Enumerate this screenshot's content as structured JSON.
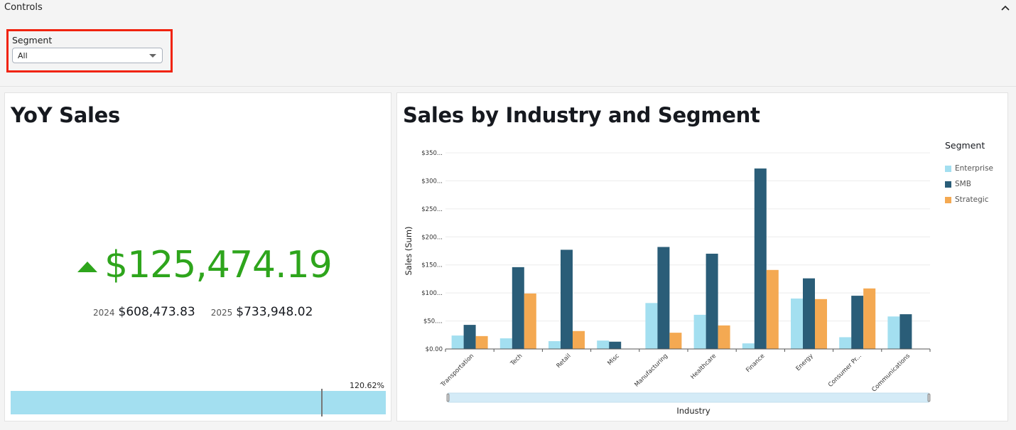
{
  "controls": {
    "title": "Controls",
    "collapse_icon": "chevron-up-icon",
    "segment_label": "Segment",
    "segment_value": "All"
  },
  "kpi": {
    "title": "YoY Sales",
    "trend_icon": "triangle-up-icon",
    "difference": "$125,474.19",
    "prior_year": "2024",
    "prior_value": "$608,473.83",
    "current_year": "2025",
    "current_value": "$733,948.02",
    "progress_label": "120.62%",
    "progress_percent": 120.62,
    "colors": {
      "positive": "#2ea51c",
      "bar": "#a3dff0",
      "marker": "#777777"
    }
  },
  "chart_data": {
    "type": "bar",
    "title": "Sales by Industry and Segment",
    "xlabel": "Industry",
    "ylabel": "Sales (Sum)",
    "ylim": [
      0,
      350
    ],
    "yticks": [
      0,
      50,
      100,
      150,
      200,
      250,
      300,
      350
    ],
    "ytick_labels": [
      "$0.00",
      "$50....",
      "$100...",
      "$150...",
      "$200...",
      "$250...",
      "$300...",
      "$350..."
    ],
    "grid": true,
    "legend_title": "Segment",
    "legend_position": "right",
    "categories": [
      "Transportation",
      "Tech",
      "Retail",
      "Misc",
      "Manufacturing",
      "Healthcare",
      "Finance",
      "Energy",
      "Consumer Pr...",
      "Communications"
    ],
    "series": [
      {
        "name": "Enterprise",
        "color": "#a3dff0",
        "values": [
          24,
          19,
          14,
          15,
          82,
          61,
          10,
          90,
          21,
          58
        ]
      },
      {
        "name": "SMB",
        "color": "#2a5d78",
        "values": [
          43,
          146,
          177,
          13,
          182,
          170,
          322,
          126,
          95,
          62
        ]
      },
      {
        "name": "Strategic",
        "color": "#f4a952",
        "values": [
          23,
          99,
          32,
          null,
          29,
          42,
          141,
          89,
          108,
          null
        ]
      }
    ]
  }
}
